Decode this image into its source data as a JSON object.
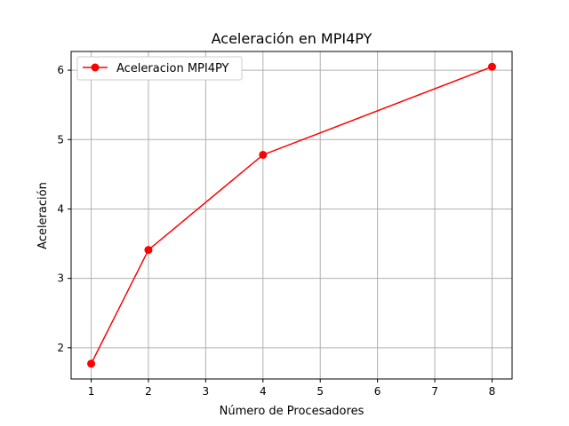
{
  "chart_data": {
    "type": "line",
    "title": "Aceleración en MPI4PY",
    "xlabel": "Número de Procesadores",
    "ylabel": "Aceleración",
    "xlim": [
      0.65,
      8.35
    ],
    "ylim": [
      1.55,
      6.27
    ],
    "xticks": [
      1,
      2,
      3,
      4,
      5,
      6,
      7,
      8
    ],
    "yticks": [
      2,
      3,
      4,
      5,
      6
    ],
    "grid": true,
    "legend_position": "upper-left",
    "series": [
      {
        "name": "Aceleracion MPI4PY",
        "color": "#ff0000",
        "marker": "circle",
        "x": [
          1,
          2,
          4,
          8
        ],
        "y": [
          1.77,
          3.41,
          4.78,
          6.05
        ]
      }
    ]
  }
}
